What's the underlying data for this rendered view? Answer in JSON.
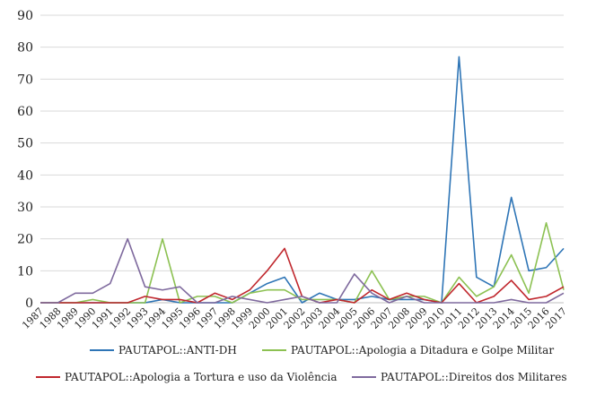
{
  "chart_data": {
    "type": "line",
    "title": "",
    "xlabel": "",
    "ylabel": "",
    "ylim": [
      0,
      90
    ],
    "yticks": [
      0,
      10,
      20,
      30,
      40,
      50,
      60,
      70,
      80,
      90
    ],
    "grid": true,
    "legend_position": "bottom",
    "x": [
      "1987",
      "1988",
      "1989",
      "1990",
      "1991",
      "1992",
      "1993",
      "1994",
      "1995",
      "1996",
      "1997",
      "1998",
      "1999",
      "2000",
      "2001",
      "2002",
      "2003",
      "2004",
      "2005",
      "2006",
      "2007",
      "2008",
      "2009",
      "2010",
      "2011",
      "2012",
      "2013",
      "2014",
      "2015",
      "2016",
      "2017"
    ],
    "series": [
      {
        "name": "PAUTAPOL::ANTI-DH",
        "color": "#2e75b6",
        "values": [
          0,
          0,
          0,
          0,
          0,
          0,
          0,
          1,
          0,
          0,
          0,
          0,
          3,
          6,
          8,
          0,
          3,
          1,
          1,
          2,
          1,
          1,
          1,
          0,
          77,
          8,
          5,
          33,
          10,
          11,
          17
        ]
      },
      {
        "name": "PAUTAPOL::Apologia a Ditadura e Golpe Militar",
        "color": "#8cc152",
        "values": [
          0,
          0,
          0,
          1,
          0,
          0,
          0,
          20,
          0,
          2,
          2,
          0,
          3,
          4,
          4,
          1,
          1,
          1,
          0,
          10,
          1,
          2,
          2,
          0,
          8,
          2,
          5,
          15,
          3,
          25,
          4
        ]
      },
      {
        "name": "PAUTAPOL::Apologia a Tortura e uso da Violência",
        "color": "#c0272d",
        "values": [
          0,
          0,
          0,
          0,
          0,
          0,
          2,
          1,
          1,
          0,
          3,
          1,
          4,
          10,
          17,
          2,
          0,
          1,
          0,
          4,
          1,
          3,
          1,
          0,
          6,
          0,
          2,
          7,
          1,
          2,
          5
        ]
      },
      {
        "name": "PAUTAPOL::Direitos dos Militares",
        "color": "#7f6a9e",
        "values": [
          0,
          0,
          3,
          3,
          6,
          20,
          5,
          4,
          5,
          0,
          0,
          2,
          1,
          0,
          1,
          2,
          0,
          0,
          9,
          3,
          0,
          2,
          0,
          0,
          0,
          0,
          0,
          1,
          0,
          0,
          3
        ]
      }
    ]
  }
}
